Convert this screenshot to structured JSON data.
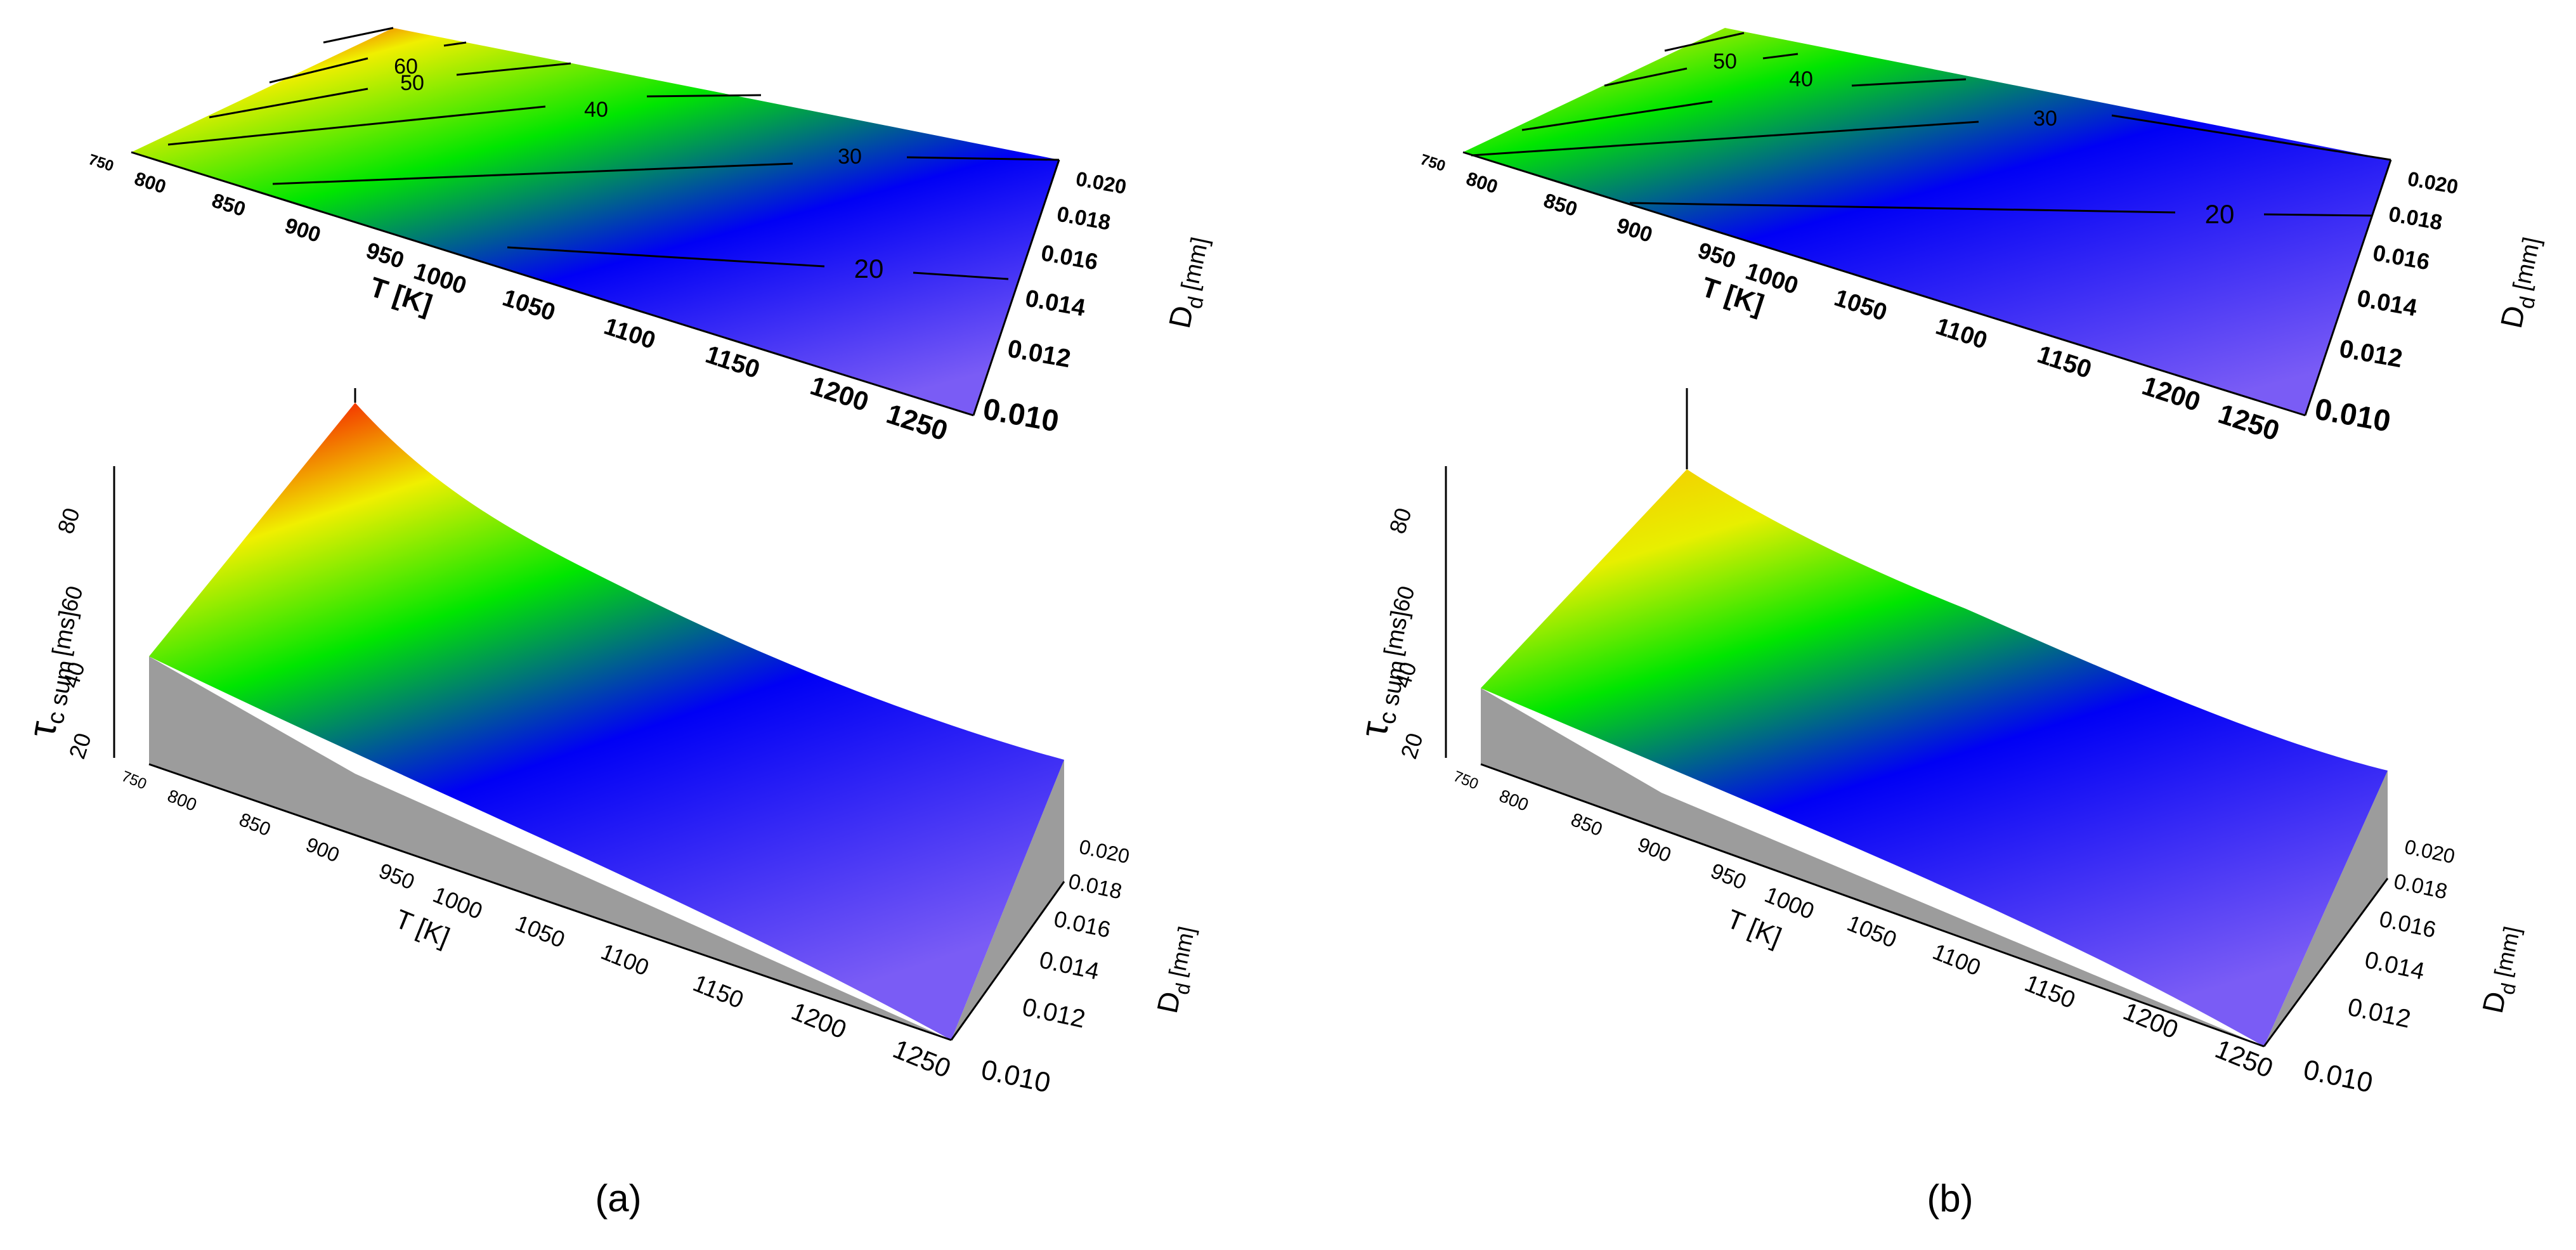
{
  "figure": {
    "panels": [
      {
        "label": "(a)"
      },
      {
        "label": "(b)"
      }
    ]
  },
  "colors": {
    "colormap": [
      "#6f52f2",
      "#0000f5",
      "#00e600",
      "#f0ef00",
      "#f50000"
    ],
    "side_wall": "#9c9c9c",
    "contour_line": "#000000",
    "axis": "#000000"
  },
  "chart_data": [
    {
      "panel": "(a)",
      "type": "surface_3d_with_contour_map",
      "x_axis": {
        "label": "T [K]",
        "ticks": [
          750,
          800,
          850,
          900,
          950,
          1000,
          1050,
          1100,
          1150,
          1200,
          1250
        ],
        "range": [
          750,
          1250
        ]
      },
      "y_axis": {
        "label": "D",
        "label_sub": "d",
        "label_unit": "[mm]",
        "ticks": [
          "0.010",
          "0.012",
          "0.014",
          "0.016",
          "0.018",
          "0.020"
        ],
        "range": [
          0.01,
          0.02
        ]
      },
      "z_axis": {
        "label": "τ",
        "label_sub": "c sum",
        "label_unit": "[ms]",
        "ticks": [
          20,
          40,
          60,
          80
        ],
        "range": [
          15,
          90
        ]
      },
      "contour_levels": [
        20,
        30,
        40,
        50,
        60
      ],
      "surface_edge_T_750": {
        "D_d": [
          0.01,
          0.012,
          0.014,
          0.016,
          0.018,
          0.02
        ],
        "tau": [
          43,
          51,
          59,
          67,
          76,
          84
        ]
      },
      "surface_edge_T_1250": {
        "D_d": [
          0.01,
          0.012,
          0.014,
          0.016,
          0.018,
          0.02
        ],
        "tau": [
          16,
          18,
          20,
          22,
          24,
          26
        ]
      },
      "surface_edge_D_0020": {
        "T": [
          750,
          800,
          850,
          900,
          950,
          1000,
          1050,
          1100,
          1150,
          1200,
          1250
        ],
        "tau": [
          84,
          71,
          61,
          53,
          47,
          42,
          38,
          34,
          31,
          28,
          26
        ]
      },
      "surface_edge_D_0010": {
        "T": [
          750,
          800,
          850,
          900,
          950,
          1000,
          1050,
          1100,
          1150,
          1200,
          1250
        ],
        "tau": [
          43,
          37,
          32,
          28,
          25,
          23,
          21,
          19,
          18,
          17,
          16
        ]
      }
    },
    {
      "panel": "(b)",
      "type": "surface_3d_with_contour_map",
      "x_axis": {
        "label": "T [K]",
        "ticks": [
          750,
          800,
          850,
          900,
          950,
          1000,
          1050,
          1100,
          1150,
          1200,
          1250
        ],
        "range": [
          750,
          1250
        ]
      },
      "y_axis": {
        "label": "D",
        "label_sub": "d",
        "label_unit": "[mm]",
        "ticks": [
          "0.010",
          "0.012",
          "0.014",
          "0.016",
          "0.018",
          "0.020"
        ],
        "range": [
          0.01,
          0.02
        ]
      },
      "z_axis": {
        "label": "τ",
        "label_sub": "c sum",
        "label_unit": "[ms]",
        "ticks": [
          20,
          40,
          60,
          80
        ],
        "range": [
          15,
          90
        ]
      },
      "contour_levels": [
        20,
        30,
        40,
        50
      ],
      "surface_edge_T_750": {
        "D_d": [
          0.01,
          0.012,
          0.014,
          0.016,
          0.018,
          0.02
        ],
        "tau": [
          36,
          39,
          42,
          45,
          49,
          53
        ]
      },
      "surface_edge_T_1250": {
        "D_d": [
          0.01,
          0.012,
          0.014,
          0.016,
          0.018,
          0.02
        ],
        "tau": [
          15,
          16,
          17,
          18,
          19,
          20
        ]
      },
      "surface_edge_D_0020": {
        "T": [
          750,
          800,
          850,
          900,
          950,
          1000,
          1050,
          1100,
          1150,
          1200,
          1250
        ],
        "tau": [
          53,
          46,
          41,
          37,
          33,
          30,
          28,
          26,
          24,
          22,
          20
        ]
      },
      "surface_edge_D_0010": {
        "T": [
          750,
          800,
          850,
          900,
          950,
          1000,
          1050,
          1100,
          1150,
          1200,
          1250
        ],
        "tau": [
          36,
          31,
          27,
          24,
          22,
          20,
          19,
          18,
          17,
          16,
          15
        ]
      }
    }
  ]
}
